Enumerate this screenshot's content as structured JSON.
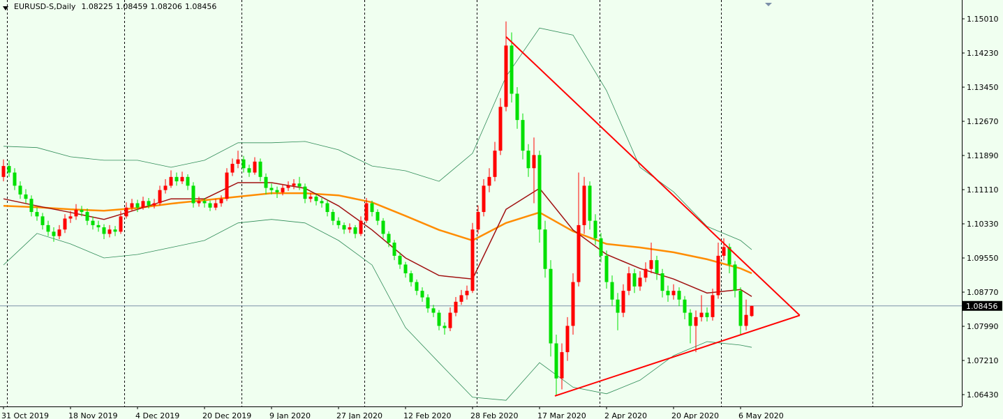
{
  "chart_data": {
    "type": "candlestick",
    "symbol": "EURUSD-S,Daily",
    "up_color": "#ff0000",
    "down_color": "#00e000",
    "price_line_color": "#7b8fa8",
    "ylim": [
      1.0616,
      1.1544
    ],
    "yticks": [
      {
        "value": 1.1501,
        "label": "1.15010"
      },
      {
        "value": 1.1423,
        "label": "1.14230"
      },
      {
        "value": 1.1345,
        "label": "1.13450"
      },
      {
        "value": 1.1267,
        "label": "1.12670"
      },
      {
        "value": 1.1189,
        "label": "1.11890"
      },
      {
        "value": 1.1111,
        "label": "1.11110"
      },
      {
        "value": 1.1033,
        "label": "1.10330"
      },
      {
        "value": 1.0955,
        "label": "1.09550"
      },
      {
        "value": 1.0877,
        "label": "1.08770"
      },
      {
        "value": 1.0799,
        "label": "1.07990"
      },
      {
        "value": 1.0721,
        "label": "1.07210"
      },
      {
        "value": 1.0643,
        "label": "1.06430"
      }
    ],
    "categories": [
      "31 Oct 2019",
      null,
      null,
      null,
      null,
      null,
      null,
      null,
      null,
      null,
      null,
      null,
      "18 Nov 2019",
      null,
      null,
      null,
      null,
      null,
      null,
      null,
      null,
      null,
      null,
      null,
      "4 Dec 2019",
      null,
      null,
      null,
      null,
      null,
      null,
      null,
      null,
      null,
      null,
      null,
      "20 Dec 2019",
      null,
      null,
      null,
      null,
      null,
      null,
      null,
      null,
      null,
      null,
      null,
      "9 Jan 2020",
      null,
      null,
      null,
      null,
      null,
      null,
      null,
      null,
      null,
      null,
      null,
      "27 Jan 2020",
      null,
      null,
      null,
      null,
      null,
      null,
      null,
      null,
      null,
      null,
      null,
      "12 Feb 2020",
      null,
      null,
      null,
      null,
      null,
      null,
      null,
      null,
      null,
      null,
      null,
      "28 Feb 2020",
      null,
      null,
      null,
      null,
      null,
      null,
      null,
      null,
      null,
      null,
      null,
      "17 Mar 2020",
      null,
      null,
      null,
      null,
      null,
      null,
      null,
      null,
      null,
      null,
      null,
      "2 Apr 2020",
      null,
      null,
      null,
      null,
      null,
      null,
      null,
      null,
      null,
      null,
      null,
      "20 Apr 2020",
      null,
      null,
      null,
      null,
      null,
      null,
      null,
      null,
      null,
      null,
      null,
      "6 May 2020",
      null,
      null
    ],
    "candles": [
      [
        1.114,
        1.118,
        1.113,
        1.1165
      ],
      [
        1.1165,
        1.1178,
        1.114,
        1.115
      ],
      [
        1.115,
        1.116,
        1.111,
        1.112
      ],
      [
        1.112,
        1.113,
        1.109,
        1.11
      ],
      [
        1.11,
        1.1112,
        1.108,
        1.109
      ],
      [
        1.109,
        1.1098,
        1.105,
        1.106
      ],
      [
        1.106,
        1.107,
        1.104,
        1.105
      ],
      [
        1.105,
        1.1058,
        1.102,
        1.103
      ],
      [
        1.103,
        1.104,
        1.1005,
        1.1015
      ],
      [
        1.1015,
        1.1025,
        1.0992,
        1.1005
      ],
      [
        1.1005,
        1.103,
        1.0998,
        1.102
      ],
      [
        1.102,
        1.1055,
        1.1012,
        1.1045
      ],
      [
        1.1045,
        1.1062,
        1.1035,
        1.105
      ],
      [
        1.105,
        1.1078,
        1.1042,
        1.1065
      ],
      [
        1.1065,
        1.1074,
        1.105,
        1.106
      ],
      [
        1.106,
        1.1068,
        1.103,
        1.104
      ],
      [
        1.104,
        1.105,
        1.102,
        1.103
      ],
      [
        1.103,
        1.104,
        1.1015,
        1.1025
      ],
      [
        1.1025,
        1.1032,
        1.0998,
        1.101
      ],
      [
        1.101,
        1.103,
        1.1002,
        1.102
      ],
      [
        1.102,
        1.1028,
        1.1005,
        1.1015
      ],
      [
        1.1015,
        1.1062,
        1.101,
        1.105
      ],
      [
        1.105,
        1.1082,
        1.1045,
        1.107
      ],
      [
        1.107,
        1.109,
        1.1062,
        1.108
      ],
      [
        1.108,
        1.1088,
        1.106,
        1.107
      ],
      [
        1.107,
        1.1095,
        1.1065,
        1.1085
      ],
      [
        1.1085,
        1.1092,
        1.1068,
        1.1075
      ],
      [
        1.1075,
        1.109,
        1.1068,
        1.108
      ],
      [
        1.108,
        1.112,
        1.1075,
        1.111
      ],
      [
        1.111,
        1.1135,
        1.1102,
        1.112
      ],
      [
        1.112,
        1.1155,
        1.1115,
        1.114
      ],
      [
        1.114,
        1.115,
        1.112,
        1.113
      ],
      [
        1.113,
        1.1152,
        1.1124,
        1.114
      ],
      [
        1.114,
        1.1146,
        1.111,
        1.112
      ],
      [
        1.112,
        1.1128,
        1.107,
        1.108
      ],
      [
        1.108,
        1.1095,
        1.1072,
        1.1085
      ],
      [
        1.1085,
        1.1092,
        1.107,
        1.108
      ],
      [
        1.108,
        1.1086,
        1.1062,
        1.107
      ],
      [
        1.107,
        1.109,
        1.1064,
        1.108
      ],
      [
        1.108,
        1.1098,
        1.1072,
        1.109
      ],
      [
        1.109,
        1.116,
        1.1085,
        1.115
      ],
      [
        1.115,
        1.1182,
        1.1142,
        1.117
      ],
      [
        1.117,
        1.12,
        1.116,
        1.118
      ],
      [
        1.118,
        1.1188,
        1.115,
        1.116
      ],
      [
        1.116,
        1.1168,
        1.114,
        1.115
      ],
      [
        1.115,
        1.1185,
        1.1145,
        1.1175
      ],
      [
        1.1175,
        1.1182,
        1.113,
        1.114
      ],
      [
        1.114,
        1.1148,
        1.11,
        1.1115
      ],
      [
        1.1115,
        1.1125,
        1.11,
        1.111
      ],
      [
        1.111,
        1.1118,
        1.1092,
        1.1105
      ],
      [
        1.1105,
        1.1124,
        1.1098,
        1.1115
      ],
      [
        1.1115,
        1.113,
        1.1108,
        1.112
      ],
      [
        1.112,
        1.1135,
        1.1112,
        1.1125
      ],
      [
        1.1125,
        1.114,
        1.111,
        1.1118
      ],
      [
        1.1118,
        1.1125,
        1.108,
        1.109
      ],
      [
        1.109,
        1.1104,
        1.1082,
        1.1095
      ],
      [
        1.1095,
        1.11,
        1.1075,
        1.1085
      ],
      [
        1.1085,
        1.1092,
        1.107,
        1.108
      ],
      [
        1.108,
        1.1088,
        1.105,
        1.106
      ],
      [
        1.106,
        1.1066,
        1.103,
        1.104
      ],
      [
        1.104,
        1.1048,
        1.1022,
        1.103
      ],
      [
        1.103,
        1.1036,
        1.101,
        1.102
      ],
      [
        1.102,
        1.1034,
        1.1012,
        1.1025
      ],
      [
        1.1025,
        1.103,
        1.1,
        1.101
      ],
      [
        1.101,
        1.105,
        1.1005,
        1.104
      ],
      [
        1.104,
        1.1092,
        1.1035,
        1.108
      ],
      [
        1.108,
        1.1086,
        1.105,
        1.106
      ],
      [
        1.106,
        1.1066,
        1.103,
        1.104
      ],
      [
        1.104,
        1.1046,
        1.1,
        1.101
      ],
      [
        1.101,
        1.1016,
        1.098,
        1.099
      ],
      [
        1.099,
        1.0996,
        1.095,
        1.096
      ],
      [
        1.096,
        1.0968,
        1.093,
        1.094
      ],
      [
        1.094,
        1.0946,
        1.091,
        1.092
      ],
      [
        1.092,
        1.0926,
        1.089,
        1.09
      ],
      [
        1.09,
        1.0906,
        1.087,
        1.088
      ],
      [
        1.088,
        1.0888,
        1.0855,
        1.0865
      ],
      [
        1.0865,
        1.0872,
        1.083,
        1.084
      ],
      [
        1.084,
        1.0848,
        1.082,
        1.083
      ],
      [
        1.083,
        1.0836,
        1.079,
        1.08
      ],
      [
        1.08,
        1.0808,
        1.078,
        1.0795
      ],
      [
        1.0795,
        1.0842,
        1.0788,
        1.083
      ],
      [
        1.083,
        1.0866,
        1.0822,
        1.0855
      ],
      [
        1.0855,
        1.0882,
        1.0848,
        1.087
      ],
      [
        1.087,
        1.0892,
        1.086,
        1.088
      ],
      [
        1.088,
        1.1035,
        1.0875,
        1.102
      ],
      [
        1.102,
        1.1075,
        1.101,
        1.106
      ],
      [
        1.106,
        1.1135,
        1.105,
        1.112
      ],
      [
        1.112,
        1.116,
        1.1105,
        1.114
      ],
      [
        1.114,
        1.122,
        1.113,
        1.12
      ],
      [
        1.12,
        1.132,
        1.119,
        1.13
      ],
      [
        1.13,
        1.1495,
        1.129,
        1.144
      ],
      [
        1.144,
        1.147,
        1.131,
        1.133
      ],
      [
        1.133,
        1.1345,
        1.125,
        1.127
      ],
      [
        1.127,
        1.1285,
        1.118,
        1.12
      ],
      [
        1.12,
        1.1215,
        1.114,
        1.116
      ],
      [
        1.116,
        1.123,
        1.108,
        1.119
      ],
      [
        1.119,
        1.12,
        1.099,
        1.102
      ],
      [
        1.102,
        1.104,
        1.091,
        1.093
      ],
      [
        1.093,
        1.095,
        1.073,
        1.076
      ],
      [
        1.076,
        1.078,
        1.064,
        1.068
      ],
      [
        1.068,
        1.076,
        1.0655,
        1.074
      ],
      [
        1.074,
        1.082,
        1.072,
        1.08
      ],
      [
        1.08,
        1.092,
        1.078,
        1.09
      ],
      [
        1.09,
        1.115,
        1.089,
        1.103
      ],
      [
        1.103,
        1.114,
        1.101,
        1.112
      ],
      [
        1.112,
        1.113,
        1.102,
        1.104
      ],
      [
        1.104,
        1.1055,
        1.0985,
        1.1
      ],
      [
        1.1,
        1.1012,
        1.0945,
        1.096
      ],
      [
        1.096,
        1.0972,
        1.0885,
        1.09
      ],
      [
        1.09,
        1.0915,
        1.0845,
        1.086
      ],
      [
        1.086,
        1.0875,
        1.079,
        1.083
      ],
      [
        1.083,
        1.0895,
        1.082,
        1.088
      ],
      [
        1.088,
        1.0935,
        1.087,
        1.092
      ],
      [
        1.092,
        1.093,
        1.0875,
        1.089
      ],
      [
        1.089,
        1.0925,
        1.088,
        1.091
      ],
      [
        1.091,
        1.0945,
        1.09,
        1.093
      ],
      [
        1.093,
        1.099,
        1.092,
        1.095
      ],
      [
        1.095,
        1.096,
        1.0905,
        1.092
      ],
      [
        1.092,
        1.093,
        1.0865,
        1.088
      ],
      [
        1.088,
        1.0892,
        1.0855,
        1.087
      ],
      [
        1.087,
        1.0895,
        1.086,
        1.088
      ],
      [
        1.088,
        1.0888,
        1.0845,
        1.086
      ],
      [
        1.086,
        1.0868,
        1.0815,
        1.083
      ],
      [
        1.083,
        1.0838,
        1.076,
        1.08
      ],
      [
        1.08,
        1.0835,
        1.074,
        1.082
      ],
      [
        1.082,
        1.087,
        1.081,
        1.083
      ],
      [
        1.083,
        1.0842,
        1.081,
        1.082
      ],
      [
        1.082,
        1.0885,
        1.0812,
        1.087
      ],
      [
        1.087,
        1.099,
        1.0862,
        1.096
      ],
      [
        1.096,
        1.1,
        1.095,
        1.098
      ],
      [
        1.098,
        1.0988,
        1.092,
        1.094
      ],
      [
        1.094,
        1.0948,
        1.0865,
        1.088
      ],
      [
        1.088,
        1.0888,
        1.078,
        1.08
      ],
      [
        1.08,
        1.086,
        1.079,
        1.0825
      ],
      [
        1.08225,
        1.08459,
        1.08206,
        1.08456
      ]
    ],
    "indicators": {
      "x": [
        0,
        6,
        12,
        18,
        24,
        30,
        36,
        42,
        48,
        54,
        60,
        66,
        72,
        78,
        84,
        90,
        96,
        102,
        108,
        114,
        120,
        126,
        132,
        134
      ],
      "series": [
        {
          "color": "#2e8b57",
          "width": 0.8,
          "values": [
            1.121,
            1.1207,
            1.1186,
            1.1178,
            1.1178,
            1.1162,
            1.1178,
            1.1218,
            1.1218,
            1.1221,
            1.1202,
            1.1165,
            1.1154,
            1.113,
            1.1194,
            1.1369,
            1.148,
            1.1464,
            1.1337,
            1.1162,
            1.1106,
            1.1027,
            1.0995,
            1.0974
          ]
        },
        {
          "color": "#2e8b57",
          "width": 0.8,
          "values": [
            1.0939,
            1.1011,
            1.0987,
            1.0955,
            1.0963,
            1.0979,
            1.0995,
            1.1035,
            1.1043,
            1.1035,
            1.0995,
            1.0939,
            1.0796,
            1.0716,
            1.0637,
            1.063,
            1.0716,
            1.066,
            1.0645,
            1.0676,
            1.0732,
            1.0764,
            1.0756,
            1.0751
          ]
        },
        {
          "color": "#ff8c00",
          "width": 2.5,
          "values": [
            1.1074,
            1.1071,
            1.1066,
            1.1063,
            1.1069,
            1.1079,
            1.1087,
            1.1095,
            1.1103,
            1.1103,
            1.1098,
            1.1082,
            1.1051,
            1.1019,
            1.0995,
            1.1035,
            1.1059,
            1.1016,
            1.0987,
            1.0979,
            1.0968,
            1.0952,
            1.0931,
            1.092
          ]
        },
        {
          "color": "#a01010",
          "width": 1.5,
          "values": [
            1.109,
            1.1074,
            1.1059,
            1.1043,
            1.1066,
            1.109,
            1.109,
            1.1127,
            1.1127,
            1.1114,
            1.1074,
            1.1019,
            1.0955,
            1.0915,
            1.0907,
            1.1066,
            1.1114,
            1.1019,
            1.0963,
            1.0931,
            1.0907,
            1.0875,
            1.0883,
            1.0867
          ]
        }
      ]
    },
    "trendlines": [
      {
        "color": "#ff0000",
        "x": [
          90,
          142.6
        ],
        "y": [
          1.146,
          1.0824
        ]
      },
      {
        "color": "#ff0000",
        "x": [
          98.75,
          142.6
        ],
        "y": [
          1.064,
          1.0824
        ]
      }
    ]
  }
}
